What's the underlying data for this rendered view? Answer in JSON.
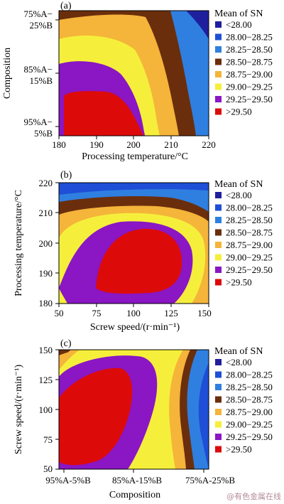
{
  "levels": [
    {
      "label": "<28.00",
      "color": "#1f1f9e"
    },
    {
      "label": "28.00−28.25",
      "color": "#1e4fd6"
    },
    {
      "label": "28.25−28.50",
      "color": "#2f7fe0"
    },
    {
      "label": "28.50−28.75",
      "color": "#6b2e0c"
    },
    {
      "label": "28.75−29.00",
      "color": "#f5b43a"
    },
    {
      "label": "29.00−29.25",
      "color": "#f5ef3c"
    },
    {
      "label": "29.25−29.50",
      "color": "#8a16c4"
    },
    {
      "label": ">29.50",
      "color": "#dd0a0a"
    }
  ],
  "watermark": "@有色金属在线",
  "chart_data": [
    {
      "panel_label": "(a)",
      "type": "contour",
      "legend_title": "Mean of SN",
      "xlabel": "Processing temperature/°C",
      "ylabel": "Composition",
      "xlim": [
        180,
        220
      ],
      "x_ticks": [
        "180",
        "190",
        "200",
        "210",
        "220"
      ],
      "y_ticks": [
        [
          "75%A−",
          "25%B"
        ],
        [
          "85%A−",
          "15%B"
        ],
        [
          "95%A−",
          "5%B"
        ]
      ],
      "ylim_categories": [
        "95%A-5%B",
        "85%A-15%B",
        "75%A-25%B"
      ]
    },
    {
      "panel_label": "(b)",
      "type": "contour",
      "legend_title": "Mean of SN",
      "xlabel": "Screw speed/(r·min⁻¹)",
      "ylabel": "Processing temperature/°C",
      "xlim": [
        50,
        150
      ],
      "ylim": [
        180,
        220
      ],
      "x_ticks": [
        "50",
        "75",
        "100",
        "125",
        "150"
      ],
      "y_ticks": [
        "220",
        "210",
        "200",
        "190",
        "180"
      ]
    },
    {
      "panel_label": "(c)",
      "type": "contour",
      "legend_title": "Mean of SN",
      "xlabel": "Composition",
      "ylabel": "Screw speed/(r·min⁻¹)",
      "ylim": [
        50,
        150
      ],
      "x_ticks": [
        "95%A-5%B",
        "85%A-15%B",
        "75%A-25%B"
      ],
      "y_ticks": [
        "150",
        "125",
        "100",
        "75",
        "50"
      ]
    }
  ]
}
